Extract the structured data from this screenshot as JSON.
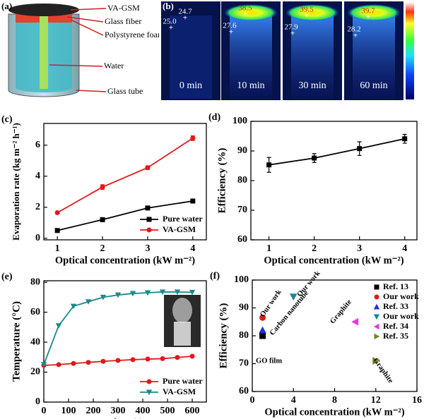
{
  "panel_a": {
    "label": "(a)",
    "callouts": [
      "VA-GSM",
      "Glass fiber",
      "Polystyrene foam",
      "Water",
      "Glass tube"
    ]
  },
  "panel_b": {
    "label": "(b)",
    "images": [
      {
        "time": "0 min",
        "readings": [
          "24.7",
          "25.0"
        ]
      },
      {
        "time": "10 min",
        "readings": [
          "38.5",
          "27.6"
        ]
      },
      {
        "time": "30 min",
        "readings": [
          "39.5",
          "27.9"
        ]
      },
      {
        "time": "60 min",
        "readings": [
          "39.7",
          "28.2"
        ]
      }
    ]
  },
  "chart_data": [
    {
      "type": "line",
      "label": "(c)",
      "xlabel": "Optical concentration (kW m⁻²)",
      "ylabel": "Evaporation rate (kg m⁻² h⁻¹)",
      "x": [
        1,
        2,
        3,
        4
      ],
      "xlim": [
        0.7,
        4.3
      ],
      "xticks": [
        1,
        2,
        3,
        4
      ],
      "ylim": [
        -0.1,
        7.4
      ],
      "yticks": [
        0,
        2,
        4,
        6
      ],
      "legend": "lower right",
      "series": [
        {
          "name": "Pure water",
          "color": "#000000",
          "marker": "square",
          "values": [
            0.5,
            1.2,
            1.95,
            2.4
          ],
          "errors": [
            0.05,
            0.05,
            0.06,
            0.1
          ]
        },
        {
          "name": "VA-GSM",
          "color": "#e0191b",
          "marker": "circle",
          "values": [
            1.65,
            3.3,
            4.55,
            6.45
          ],
          "errors": [
            0.05,
            0.15,
            0.12,
            0.15
          ]
        }
      ]
    },
    {
      "type": "line",
      "label": "(d)",
      "xlabel": "Optical concentration (kW m⁻²)",
      "ylabel": "Efficiency (%)",
      "x": [
        1,
        2,
        3,
        4
      ],
      "xlim": [
        0.6,
        4.27
      ],
      "xticks": [
        1,
        2,
        3,
        4
      ],
      "ylim": [
        60,
        100
      ],
      "yticks": [
        60,
        70,
        80,
        90,
        100
      ],
      "series": [
        {
          "color": "#000000",
          "marker": "square",
          "values": [
            85.3,
            87.6,
            90.8,
            94.1
          ],
          "errors": [
            2.5,
            1.5,
            2.3,
            1.5
          ]
        }
      ]
    },
    {
      "type": "line",
      "label": "(e)",
      "xlabel": "Time (s)",
      "ylabel": "Temperature (°C)",
      "x": [
        0,
        60,
        120,
        180,
        240,
        300,
        360,
        420,
        480,
        540,
        600
      ],
      "xlim": [
        0,
        657
      ],
      "xticks": [
        0,
        100,
        200,
        300,
        400,
        500,
        600
      ],
      "ylim": [
        0,
        81
      ],
      "yticks": [
        0,
        20,
        40,
        60,
        80
      ],
      "legend": "lower right",
      "series": [
        {
          "name": "Pure water",
          "color": "#e0191b",
          "marker": "circle",
          "values": [
            24.5,
            25,
            25.8,
            26.5,
            27.2,
            27.8,
            28.3,
            28.7,
            29,
            29.8,
            30.6
          ]
        },
        {
          "name": "VA-GSM",
          "color": "#1a8a8a",
          "marker": "down",
          "values": [
            25,
            51,
            64,
            67,
            70,
            71.5,
            72.5,
            73,
            73.5,
            73.5,
            73.3
          ]
        }
      ]
    },
    {
      "type": "scatter",
      "label": "(f)",
      "xlabel": "Optical concentration (kW m⁻²)",
      "ylabel": "Efficiency (%)",
      "xlim": [
        0,
        16
      ],
      "xticks": [
        0,
        4,
        8,
        12,
        16
      ],
      "ylim": [
        60,
        100
      ],
      "yticks": [
        60,
        70,
        80,
        90,
        100
      ],
      "legend": "upper right",
      "series": [
        {
          "name": "Ref. 13",
          "color": "#000000",
          "marker": "square",
          "x": [
            1
          ],
          "values": [
            80
          ]
        },
        {
          "name": "Our work",
          "color": "#e0191b",
          "marker": "circle",
          "x": [
            1
          ],
          "values": [
            86.5
          ]
        },
        {
          "name": "Ref. 33",
          "color": "#1f2fd6",
          "marker": "up",
          "x": [
            1
          ],
          "values": [
            82
          ]
        },
        {
          "name": "Our work",
          "color": "#1a8a8a",
          "marker": "down",
          "x": [
            4
          ],
          "values": [
            94
          ]
        },
        {
          "name": "Ref. 34",
          "color": "#e838e0",
          "marker": "left",
          "x": [
            10
          ],
          "values": [
            85
          ]
        },
        {
          "name": "Ref. 35",
          "color": "#7f7f1f",
          "marker": "right",
          "x": [
            12
          ],
          "values": [
            71
          ]
        }
      ],
      "annotations": [
        "Our work",
        "GO film",
        "Carbon nanotube",
        "Our work",
        "Graphite",
        "Graphite"
      ]
    }
  ]
}
